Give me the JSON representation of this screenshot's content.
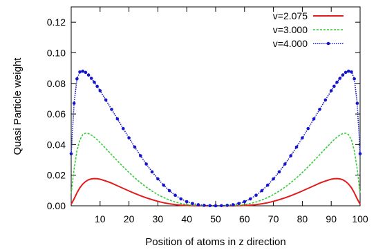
{
  "chart_data": {
    "type": "line",
    "title": "",
    "xlabel": "Position of atoms in z direction",
    "ylabel": "Quasi Particle weight",
    "xlim": [
      0,
      100
    ],
    "ylim": [
      0,
      0.13
    ],
    "xticks": [
      10,
      20,
      30,
      40,
      50,
      60,
      70,
      80,
      90,
      100
    ],
    "xtick_labels": [
      "10",
      "20",
      "30",
      "40",
      "50",
      "60",
      "70",
      "80",
      "90",
      "100"
    ],
    "yticks": [
      0,
      0.02,
      0.04,
      0.06,
      0.08,
      0.1,
      0.12
    ],
    "ytick_labels": [
      "0.00",
      "0.02",
      "0.04",
      "0.06",
      "0.08",
      "0.10",
      "0.12"
    ],
    "grid": false,
    "legend_position": "top-right",
    "series": [
      {
        "name": "v=2.075",
        "color": "#e41a1c",
        "style": "solid",
        "x": [
          0,
          1,
          2,
          3,
          4,
          5,
          6,
          7,
          8,
          9,
          10,
          12,
          14,
          16,
          18,
          20,
          22,
          24,
          26,
          28,
          30,
          32,
          34,
          36,
          38,
          40,
          42,
          44,
          46,
          48,
          50,
          52,
          54,
          56,
          58,
          60,
          62,
          64,
          66,
          68,
          70,
          72,
          74,
          76,
          78,
          80,
          82,
          84,
          86,
          88,
          90,
          91,
          92,
          93,
          94,
          95,
          96,
          97,
          98,
          99,
          100
        ],
        "y": [
          0.001,
          0.0045,
          0.0085,
          0.0118,
          0.0142,
          0.0159,
          0.017,
          0.0176,
          0.0178,
          0.0177,
          0.0174,
          0.0162,
          0.0148,
          0.0131,
          0.0114,
          0.0097,
          0.0081,
          0.0066,
          0.0052,
          0.004,
          0.0029,
          0.002,
          0.0013,
          0.0008,
          0.0004,
          0.0002,
          0.0001,
          0.0,
          0.0,
          0.0,
          0.0,
          0.0,
          0.0,
          0.0,
          0.0001,
          0.0002,
          0.0004,
          0.0008,
          0.0013,
          0.002,
          0.0029,
          0.004,
          0.0052,
          0.0066,
          0.0081,
          0.0097,
          0.0114,
          0.0131,
          0.0148,
          0.0162,
          0.0174,
          0.0177,
          0.0178,
          0.0176,
          0.017,
          0.0159,
          0.0142,
          0.0118,
          0.0085,
          0.0045,
          0.001
        ]
      },
      {
        "name": "v=3.000",
        "color": "#33cc33",
        "style": "dashed",
        "x": [
          0,
          1,
          2,
          3,
          4,
          5,
          6,
          7,
          8,
          9,
          10,
          12,
          14,
          16,
          18,
          20,
          22,
          24,
          26,
          28,
          30,
          32,
          34,
          36,
          38,
          40,
          42,
          44,
          46,
          48,
          50,
          52,
          54,
          56,
          58,
          60,
          62,
          64,
          66,
          68,
          70,
          72,
          74,
          76,
          78,
          80,
          82,
          84,
          86,
          88,
          90,
          91,
          92,
          93,
          94,
          95,
          96,
          97,
          98,
          99,
          100
        ],
        "y": [
          0.008,
          0.024,
          0.036,
          0.043,
          0.0465,
          0.0475,
          0.0472,
          0.0462,
          0.0448,
          0.0432,
          0.0413,
          0.0374,
          0.0334,
          0.0294,
          0.0255,
          0.0218,
          0.0183,
          0.0151,
          0.0122,
          0.0096,
          0.0073,
          0.0054,
          0.0038,
          0.0025,
          0.0015,
          0.0008,
          0.0004,
          0.0002,
          0.0001,
          0.0,
          0.0,
          0.0,
          0.0001,
          0.0002,
          0.0004,
          0.0008,
          0.0015,
          0.0025,
          0.0038,
          0.0054,
          0.0073,
          0.0096,
          0.0122,
          0.0151,
          0.0183,
          0.0218,
          0.0255,
          0.0294,
          0.0334,
          0.0374,
          0.0413,
          0.0432,
          0.0448,
          0.0462,
          0.0472,
          0.0475,
          0.0465,
          0.043,
          0.036,
          0.024,
          0.008
        ]
      },
      {
        "name": "v=4.000",
        "color": "#1515cc",
        "style": "dotted-points",
        "x": [
          0,
          1,
          2,
          3,
          4,
          5,
          6,
          7,
          8,
          9,
          10,
          12,
          14,
          16,
          18,
          20,
          22,
          24,
          26,
          28,
          30,
          32,
          34,
          36,
          38,
          40,
          42,
          44,
          46,
          48,
          50,
          52,
          54,
          56,
          58,
          60,
          62,
          64,
          66,
          68,
          70,
          72,
          74,
          76,
          78,
          80,
          82,
          84,
          86,
          88,
          90,
          91,
          92,
          93,
          94,
          95,
          96,
          97,
          98,
          99,
          100
        ],
        "y": [
          0.034,
          0.067,
          0.083,
          0.0875,
          0.088,
          0.0872,
          0.0855,
          0.0833,
          0.0808,
          0.0781,
          0.0752,
          0.0692,
          0.063,
          0.0568,
          0.0505,
          0.0444,
          0.0384,
          0.0327,
          0.0273,
          0.0222,
          0.0176,
          0.0135,
          0.0099,
          0.0069,
          0.0045,
          0.0027,
          0.0015,
          0.0007,
          0.0003,
          0.0001,
          0.0,
          0.0001,
          0.0003,
          0.0007,
          0.0015,
          0.0027,
          0.0045,
          0.0069,
          0.0099,
          0.0135,
          0.0176,
          0.0222,
          0.0273,
          0.0327,
          0.0384,
          0.0444,
          0.0505,
          0.0568,
          0.063,
          0.0692,
          0.0752,
          0.0781,
          0.0808,
          0.0833,
          0.0855,
          0.0872,
          0.088,
          0.0875,
          0.083,
          0.067,
          0.034
        ]
      }
    ]
  }
}
